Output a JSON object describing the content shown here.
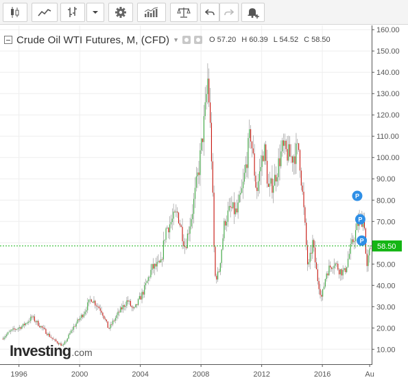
{
  "toolbar": {
    "buttons": [
      {
        "name": "candles-button",
        "icon": "candlestick-icon"
      },
      {
        "name": "indicators-button",
        "icon": "line-chart-icon"
      },
      {
        "name": "bar-type-button",
        "icon": "ohlc-bars-icon"
      },
      {
        "name": "bar-type-dropdown-button",
        "icon": "caret-down-icon"
      },
      {
        "name": "settings-button",
        "icon": "gear-icon"
      },
      {
        "name": "compare-button",
        "icon": "bar-indicators-icon"
      },
      {
        "name": "studies-button",
        "icon": "scales-icon"
      },
      {
        "name": "undo-button",
        "icon": "undo-icon"
      },
      {
        "name": "redo-button",
        "icon": "redo-icon"
      },
      {
        "name": "alerts-button",
        "icon": "bell-plus-icon"
      }
    ]
  },
  "legend": {
    "title": "Crude Oil WTI Futures, M, (CFD)",
    "ohlc": [
      {
        "label": "O",
        "value": "57.20"
      },
      {
        "label": "H",
        "value": "60.39"
      },
      {
        "label": "L",
        "value": "54.52"
      },
      {
        "label": "C",
        "value": "58.50"
      }
    ]
  },
  "logo": {
    "main": "Investing",
    "suffix": ".com"
  },
  "colors": {
    "up": "#36a33b",
    "down": "#c7120a",
    "price_line": "#14b514",
    "price_badge": "#14b514",
    "marker": "#2f8fe6",
    "grid": "#eeeeee",
    "axis_text": "#555555"
  },
  "chart_data": {
    "type": "candlestick",
    "interval": "monthly",
    "y_ticks": [
      "10.00",
      "20.00",
      "30.00",
      "40.00",
      "50.00",
      "60.00",
      "70.00",
      "80.00",
      "90.00",
      "100.00",
      "110.00",
      "120.00",
      "130.00",
      "140.00",
      "150.00",
      "160.00"
    ],
    "ylim": [
      3,
      162
    ],
    "x_ticks": [
      "1996",
      "2000",
      "2004",
      "2008",
      "2012",
      "2016",
      "Au"
    ],
    "x_tick_values": [
      1996,
      2000,
      2004,
      2008,
      2012,
      2016,
      2019.12
    ],
    "xlim": [
      1994.75,
      2019.25
    ],
    "last_price": "58.50",
    "last_value": 58.5,
    "markers": [
      {
        "label": "P",
        "x": 2018.3,
        "y": 82
      },
      {
        "label": "P",
        "x": 2018.5,
        "y": 71
      },
      {
        "label": "P",
        "x": 2018.6,
        "y": 61
      }
    ],
    "anchors": [
      [
        1994.9,
        15
      ],
      [
        1995.5,
        18.5
      ],
      [
        1996.3,
        21
      ],
      [
        1996.9,
        25
      ],
      [
        1997.5,
        20.5
      ],
      [
        1998.3,
        14.5
      ],
      [
        1998.95,
        11.5
      ],
      [
        1999.6,
        20
      ],
      [
        2000.3,
        27
      ],
      [
        2000.8,
        34
      ],
      [
        2001.5,
        28
      ],
      [
        2001.95,
        19.5
      ],
      [
        2002.6,
        27
      ],
      [
        2003.2,
        33
      ],
      [
        2003.6,
        28
      ],
      [
        2004.3,
        38
      ],
      [
        2004.8,
        48
      ],
      [
        2005.4,
        50
      ],
      [
        2005.7,
        66
      ],
      [
        2006.5,
        74
      ],
      [
        2007.0,
        58
      ],
      [
        2007.5,
        76
      ],
      [
        2007.9,
        95
      ],
      [
        2008.3,
        120
      ],
      [
        2008.5,
        138
      ],
      [
        2008.75,
        98
      ],
      [
        2008.95,
        44
      ],
      [
        2009.2,
        45
      ],
      [
        2009.6,
        70
      ],
      [
        2010.0,
        76
      ],
      [
        2010.4,
        74
      ],
      [
        2010.8,
        86
      ],
      [
        2011.3,
        112
      ],
      [
        2011.7,
        84
      ],
      [
        2012.2,
        105
      ],
      [
        2012.5,
        84
      ],
      [
        2012.9,
        90
      ],
      [
        2013.4,
        104
      ],
      [
        2013.7,
        102
      ],
      [
        2014.0,
        100
      ],
      [
        2014.5,
        104
      ],
      [
        2014.85,
        72
      ],
      [
        2015.1,
        47
      ],
      [
        2015.4,
        60
      ],
      [
        2015.7,
        44
      ],
      [
        2016.0,
        34
      ],
      [
        2016.3,
        46
      ],
      [
        2016.8,
        51
      ],
      [
        2017.2,
        47
      ],
      [
        2017.5,
        46
      ],
      [
        2017.9,
        57
      ],
      [
        2018.4,
        69
      ],
      [
        2018.8,
        72
      ],
      [
        2018.95,
        46
      ],
      [
        2019.1,
        54
      ],
      [
        2019.25,
        58.5
      ]
    ]
  }
}
